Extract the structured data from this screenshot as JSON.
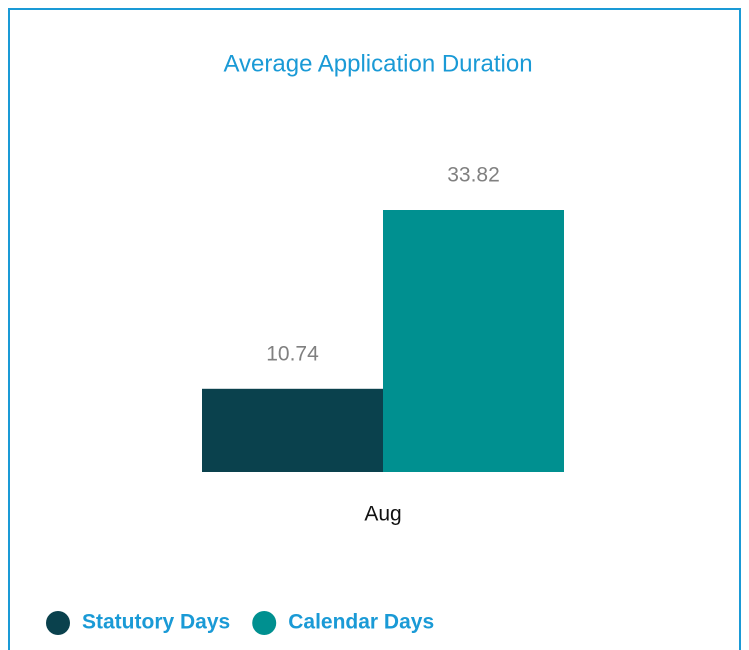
{
  "chart_data": {
    "type": "bar",
    "title": "Average Application Duration",
    "categories": [
      "Aug"
    ],
    "series": [
      {
        "name": "Statutory Days",
        "color": "#0a414d",
        "values": [
          10.74
        ]
      },
      {
        "name": "Calendar Days",
        "color": "#009090",
        "values": [
          33.82
        ]
      }
    ]
  }
}
